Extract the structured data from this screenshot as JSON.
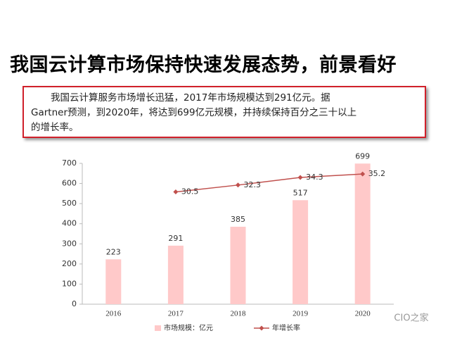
{
  "header": {
    "title": "我国云计算市场保持快速发展态势，前景看好"
  },
  "text_box": {
    "lines": [
      "我国云计算服务市场增长迅猛，2017年市场规模达到291亿元。据",
      "Gartner预测，到2020年，将达到699亿元规模，并持续保持百分之三十以上",
      "的增长率。"
    ]
  },
  "watermark": "CIO之家",
  "chart_data": {
    "type": "bar",
    "categories": [
      "2016",
      "2017",
      "2018",
      "2019",
      "2020"
    ],
    "series": [
      {
        "name": "市场规模：亿元",
        "type": "bar",
        "color": "#ffc9c9",
        "values": [
          223,
          291,
          385,
          517,
          699
        ]
      },
      {
        "name": "年增长率",
        "type": "line",
        "axis": "y2",
        "color": "#c0504d",
        "values": [
          null,
          30.5,
          32.3,
          34.3,
          35.2
        ]
      }
    ],
    "ylim": [
      0,
      700
    ],
    "yticks": [
      0,
      100,
      200,
      300,
      400,
      500,
      600,
      700
    ],
    "y2lim": [
      1,
      38
    ],
    "legend": "bottom"
  }
}
